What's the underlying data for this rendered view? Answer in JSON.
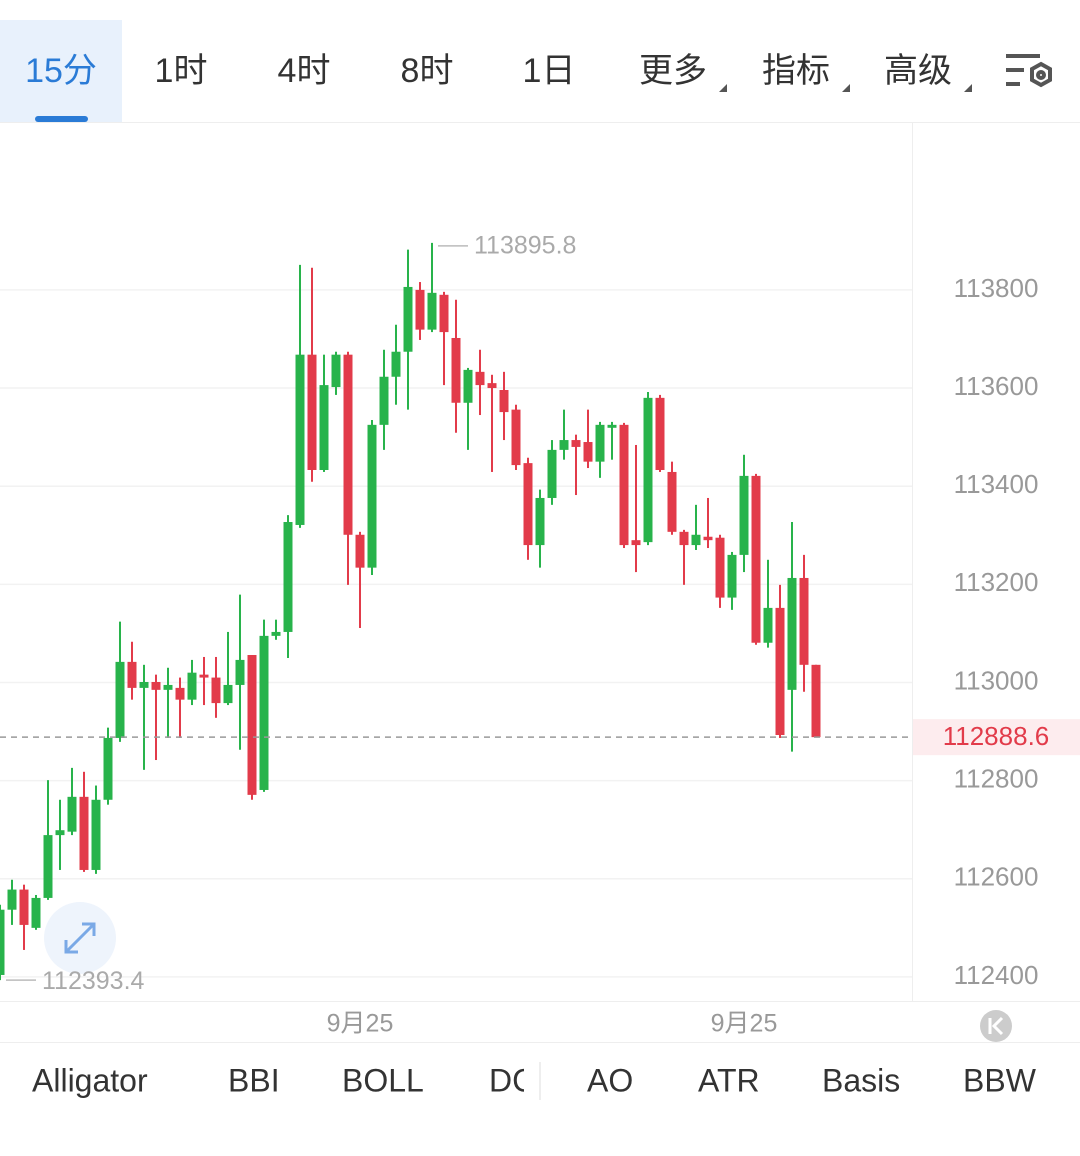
{
  "tabs": [
    "15分",
    "1时",
    "4时",
    "8时",
    "1日",
    "更多",
    "指标",
    "高级"
  ],
  "chart_data": {
    "type": "candlestick",
    "categories": [
      null,
      null,
      null,
      null,
      null,
      null,
      null,
      null,
      null,
      null,
      null,
      null,
      null,
      null,
      null,
      null,
      null,
      null,
      null,
      null,
      null,
      null,
      null,
      null,
      null,
      null,
      null,
      null,
      null,
      null,
      "9月25",
      null,
      null,
      null,
      null,
      null,
      null,
      null,
      null,
      null,
      null,
      null,
      null,
      null,
      null,
      null,
      null,
      null,
      null,
      null,
      null,
      null,
      null,
      null,
      null,
      null,
      null,
      null,
      null,
      null,
      null,
      null,
      "9月25",
      null,
      null,
      null,
      null,
      null,
      null
    ],
    "open": [
      112404,
      112537,
      112578,
      112500,
      112561,
      112689,
      112696,
      112767,
      112618,
      112761,
      112887,
      113042,
      112989,
      113001,
      112985,
      112989,
      112965,
      113016,
      113010,
      112958,
      112995,
      113056,
      112781,
      113095,
      113103,
      113321,
      113668,
      113433,
      113602,
      113668,
      113301,
      113234,
      113525,
      113623,
      113674,
      113800,
      113719,
      113790,
      113702,
      113570,
      113633,
      113610,
      113596,
      113556,
      113447,
      113280,
      113376,
      113474,
      113494,
      113490,
      113450,
      113519,
      113525,
      113290,
      113286,
      113580,
      113429,
      113307,
      113280,
      113297,
      113295,
      113173,
      113260,
      113421,
      113081,
      113152,
      112985,
      113213,
      113036
    ],
    "high": [
      112547,
      112598,
      112588,
      112567,
      112801,
      112761,
      112826,
      112818,
      112790,
      112908,
      113124,
      113083,
      113036,
      113016,
      113030,
      113010,
      113046,
      113052,
      113052,
      113103,
      113179,
      113056,
      113128,
      113128,
      113341,
      113851,
      113845,
      113668,
      113674,
      113674,
      113307,
      113535,
      113678,
      113729,
      113882,
      113816,
      113895.8,
      113796,
      113780,
      113641,
      113678,
      113627,
      113633,
      113566,
      113458,
      113393,
      113494,
      113556,
      113505,
      113556,
      113531,
      113531,
      113529,
      113484,
      113592,
      113586,
      113450,
      113311,
      113362,
      113376,
      113301,
      113266,
      113464,
      113425,
      113250,
      113199,
      113327,
      113260,
      113036
    ],
    "low": [
      112393.4,
      112506,
      112455,
      112496,
      112557,
      112618,
      112689,
      112614,
      112610,
      112751,
      112879,
      112965,
      112822,
      112842,
      112887,
      112887,
      112954,
      112954,
      112928,
      112954,
      112863,
      112761,
      112777,
      113087,
      113050,
      113315,
      113409,
      113429,
      113586,
      113199,
      113111,
      113219,
      113474,
      113566,
      113556,
      113698,
      113714,
      113606,
      113509,
      113474,
      113545,
      113429,
      113494,
      113433,
      113250,
      113234,
      113362,
      113454,
      113382,
      113437,
      113417,
      113454,
      113274,
      113225,
      113280,
      113429,
      113301,
      113199,
      113270,
      113274,
      113152,
      113148,
      113225,
      113077,
      113071,
      112887,
      112859,
      112981,
      112888.6
    ],
    "close": [
      112537,
      112578,
      112506,
      112561,
      112689,
      112699,
      112767,
      112618,
      112761,
      112887,
      113042,
      112989,
      113001,
      112985,
      112995,
      112965,
      113020,
      113010,
      112958,
      112995,
      113046,
      112771,
      113095,
      113103,
      113327,
      113668,
      113433,
      113606,
      113668,
      113301,
      113234,
      113525,
      113623,
      113674,
      113806,
      113719,
      113794,
      113714,
      113570,
      113637,
      113606,
      113600,
      113551,
      113443,
      113280,
      113376,
      113474,
      113494,
      113480,
      113450,
      113525,
      113525,
      113280,
      113280,
      113580,
      113433,
      113307,
      113280,
      113301,
      113290,
      113173,
      113260,
      113421,
      113081,
      113152,
      112893,
      113213,
      113036,
      112888.6
    ],
    "up_color": "#28b34b",
    "down_color": "#e23b4a",
    "ylim": [
      112353,
      114136
    ],
    "yticks": [
      112400,
      112600,
      112800,
      113000,
      113200,
      113400,
      113600,
      113800
    ],
    "grid": true
  },
  "indicators": [
    "Alligator",
    "BBI",
    "BOLL",
    "DC",
    "AO",
    "ATR",
    "Basis",
    "BBW"
  ]
}
